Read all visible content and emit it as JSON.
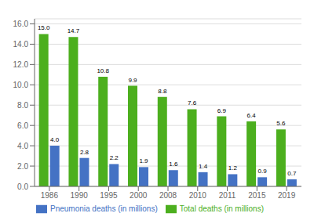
{
  "chart_data": {
    "type": "bar",
    "categories": [
      "1986",
      "1990",
      "1995",
      "2000",
      "2008",
      "2010",
      "2011",
      "2015",
      "2019"
    ],
    "series": [
      {
        "name": "Total deaths (in millions)",
        "color": "#4caf1e",
        "values": [
          15.0,
          14.7,
          10.8,
          9.9,
          8.8,
          7.6,
          6.9,
          6.4,
          5.6
        ],
        "value_labels": [
          "15.0",
          "14.7",
          "10.8",
          "9.9",
          "8.8",
          "7.6",
          "6.9",
          "6.4",
          "5.6"
        ]
      },
      {
        "name": "Pneumonia deaths (in millions)",
        "color": "#4472c4",
        "values": [
          4.0,
          2.8,
          2.2,
          1.9,
          1.6,
          1.4,
          1.2,
          0.9,
          0.7
        ],
        "value_labels": [
          "4.0",
          "2.8",
          "2.2",
          "1.9",
          "1.6",
          "1.4",
          "1.2",
          "0.9",
          "0.7"
        ]
      }
    ],
    "ylim": [
      0,
      16.5
    ],
    "yticks": [
      {
        "value": 0.0,
        "label": "0.0"
      },
      {
        "value": 2.0,
        "label": "2.0"
      },
      {
        "value": 4.0,
        "label": "4.0"
      },
      {
        "value": 6.0,
        "label": "6.0"
      },
      {
        "value": 8.0,
        "label": "8.0"
      },
      {
        "value": 10.0,
        "label": "10.0"
      },
      {
        "value": 12.0,
        "label": "12.0"
      },
      {
        "value": 14.0,
        "label": "14.0"
      },
      {
        "value": 16.0,
        "label": "16.0"
      }
    ],
    "grid": true,
    "legend": "bottom",
    "data_labels": true
  }
}
